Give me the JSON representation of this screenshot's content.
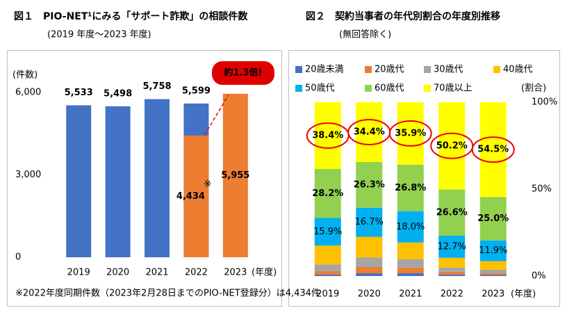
{
  "chart_data": [
    {
      "type": "bar",
      "title": "図１　PIO-NET¹にみる「サポート詐欺」の相談件数",
      "subtitle": "(2019 年度～2023 年度)",
      "y_label": "(件数)",
      "x_label": "(年度)",
      "categories": [
        "2019",
        "2020",
        "2021",
        "2022",
        "2023"
      ],
      "series": [
        {
          "color": "#4472c4",
          "values": [
            5533,
            5498,
            5758,
            5599,
            null
          ],
          "value_labels": [
            "5,533",
            "5,498",
            "5,758",
            "5,599",
            null
          ]
        },
        {
          "color": "#ed7d31",
          "values": [
            null,
            null,
            null,
            4434,
            5955
          ],
          "value_labels": [
            null,
            null,
            null,
            "4,434",
            "5,955"
          ]
        }
      ],
      "ylim": [
        0,
        6600
      ],
      "yticks": [
        0,
        {
          "value": 3000,
          "label": "3,000"
        },
        {
          "value": 6000,
          "label": "6,000"
        }
      ],
      "annotation": "約1.3倍!",
      "note_mark": "※",
      "footnote": "※2022年度同期件数（2023年2月28日までのPIO-NET登録分）は4,434件"
    },
    {
      "type": "stacked_bar",
      "title": "図２　契約当事者の年代別割合の年度別推移",
      "subtitle": "(無回答除く)",
      "y_label": "(割合)",
      "x_label": "(年度)",
      "categories": [
        "2019",
        "2020",
        "2021",
        "2022",
        "2023"
      ],
      "series": [
        {
          "name": "20歳未満",
          "color": "#4472c4",
          "values": [
            0.9,
            1.6,
            1.6,
            0.9,
            0.6
          ]
        },
        {
          "name": "20歳代",
          "color": "#ed7d31",
          "values": [
            2.0,
            3.6,
            3.3,
            1.6,
            1.0
          ]
        },
        {
          "name": "30歳代",
          "color": "#a5a5a5",
          "values": [
            3.8,
            5.4,
            4.8,
            2.4,
            2.0
          ]
        },
        {
          "name": "40歳代",
          "color": "#ffc000",
          "values": [
            10.8,
            12.0,
            9.6,
            5.6,
            5.0
          ]
        },
        {
          "name": "50歳代",
          "color": "#00b0f0",
          "values": [
            15.9,
            16.7,
            18.0,
            12.7,
            11.9
          ],
          "value_labels": [
            "15.9%",
            "16.7%",
            "18.0%",
            "12.7%",
            "11.9%"
          ]
        },
        {
          "name": "60歳代",
          "color": "#92d050",
          "values": [
            28.2,
            26.3,
            26.8,
            26.6,
            25.0
          ],
          "value_labels": [
            "28.2%",
            "26.3%",
            "26.8%",
            "26.6%",
            "25.0%"
          ]
        },
        {
          "name": "70歳以上",
          "color": "#ffff00",
          "values": [
            38.4,
            34.4,
            35.9,
            50.2,
            54.5
          ],
          "value_labels": [
            "38.4%",
            "34.4%",
            "35.9%",
            "50.2%",
            "54.5%"
          ]
        }
      ],
      "ylim": [
        0,
        100
      ],
      "yticks": [
        {
          "value": 0,
          "label": "0%"
        },
        {
          "value": 50,
          "label": "50%"
        },
        {
          "value": 100,
          "label": "100%"
        }
      ]
    }
  ]
}
